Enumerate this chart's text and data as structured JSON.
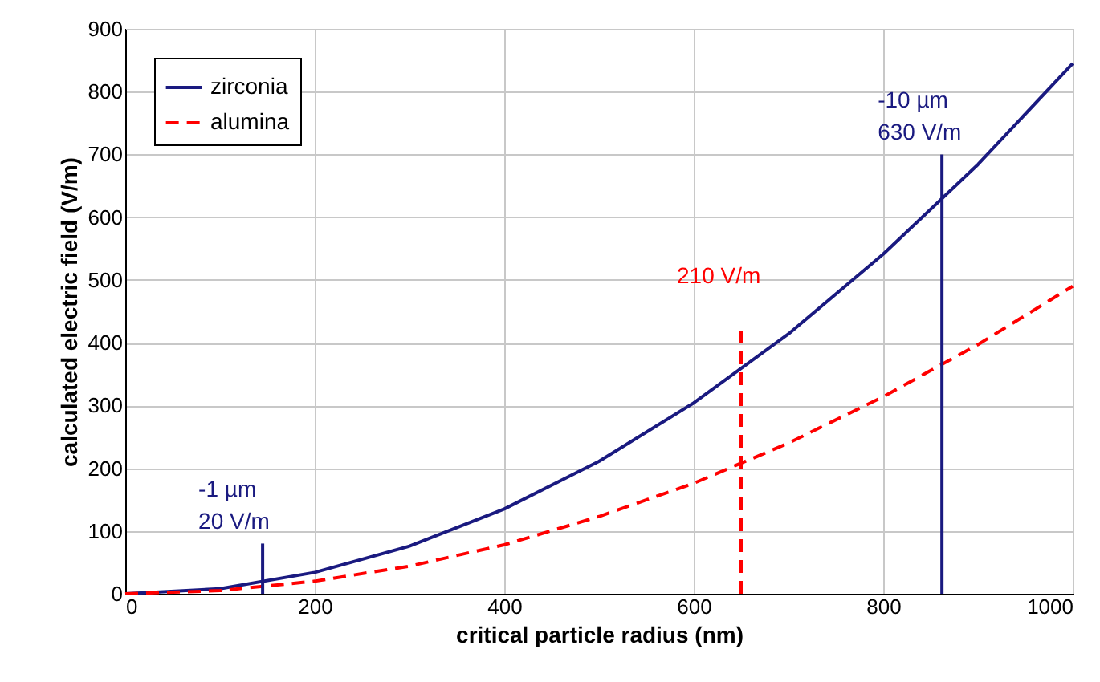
{
  "chart_data": {
    "type": "line",
    "xlabel": "critical particle radius (nm)",
    "ylabel": "calculated electric field (V/m)",
    "x": [
      0,
      100,
      200,
      300,
      400,
      500,
      600,
      700,
      800,
      900,
      1000
    ],
    "series": [
      {
        "name": "zirconia",
        "color": "#1a1a80",
        "line_style": "solid",
        "values": [
          0,
          8,
          34,
          76,
          135,
          211,
          304,
          414,
          541,
          684,
          845
        ]
      },
      {
        "name": "alumina",
        "color": "#ff0000",
        "line_style": "dashed",
        "values": [
          0,
          5,
          20,
          44,
          78,
          123,
          176,
          240,
          314,
          397,
          490
        ]
      }
    ],
    "xlim": [
      0,
      1000
    ],
    "xticks": [
      0,
      200,
      400,
      600,
      800,
      1000
    ],
    "ylim": [
      0,
      900
    ],
    "yticks": [
      0,
      100,
      200,
      300,
      400,
      500,
      600,
      700,
      800,
      900
    ],
    "grid": true,
    "legend": "top left",
    "marker": "none",
    "ref_lines": [
      {
        "axis": "x",
        "value": 145,
        "color": "#1a1a80",
        "line_style": "solid"
      },
      {
        "axis": "x",
        "value": 650,
        "color": "#ff0000",
        "line_style": "dashed"
      },
      {
        "axis": "x",
        "value": 862,
        "color": "#1a1a80",
        "line_style": "solid"
      }
    ],
    "annotations": [
      {
        "text": "-1 µm\n20 V/m",
        "x": 145,
        "y": 80
      },
      {
        "text": "210 V/m",
        "x": 650,
        "y": 420
      },
      {
        "text": "-10 µm\n630 V/m",
        "x": 862,
        "y": 700
      }
    ]
  }
}
